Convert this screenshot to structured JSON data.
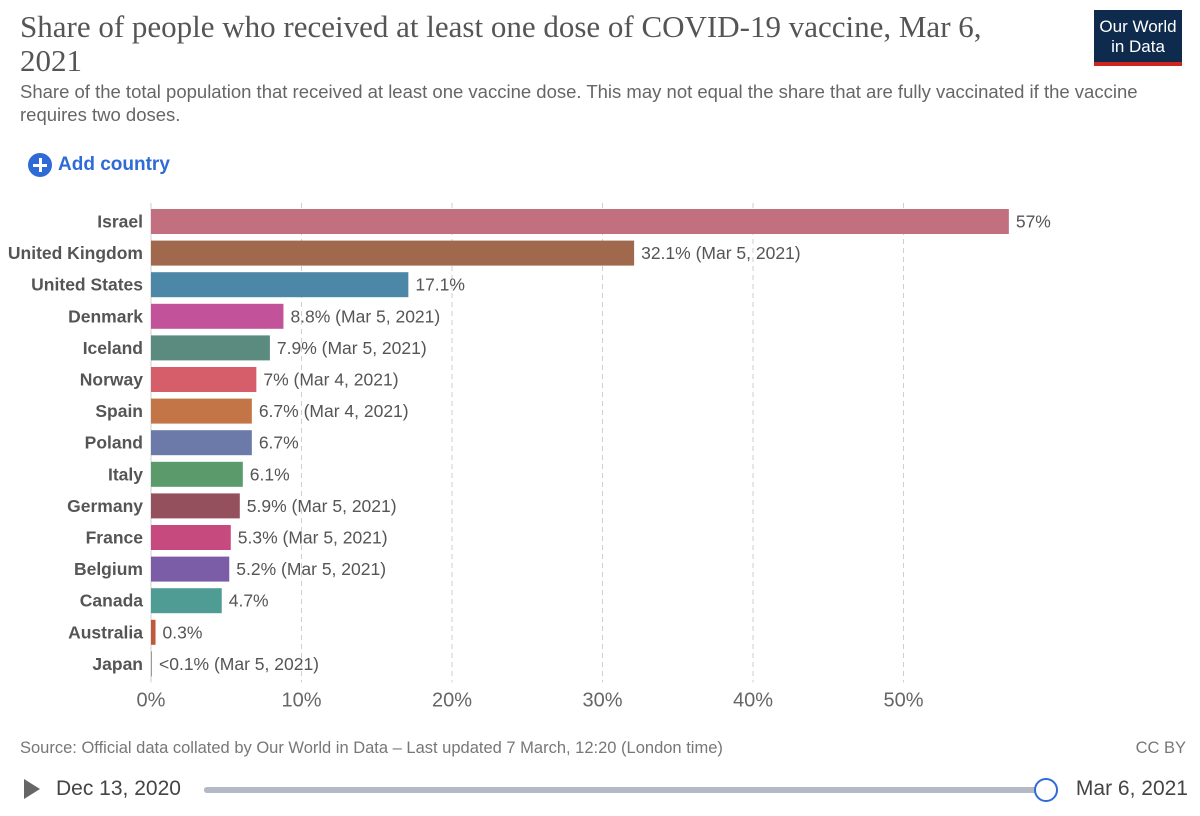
{
  "header": {
    "title": "Share of people who received at least one dose of COVID-19 vaccine, Mar 6, 2021",
    "subtitle": "Share of the total population that received at least one vaccine dose. This may not equal the share that are fully vaccinated if the vaccine requires two doses.",
    "logo_line1": "Our World",
    "logo_line2": "in Data"
  },
  "controls": {
    "add_country_label": "Add country"
  },
  "chart_data": {
    "type": "bar",
    "orientation": "horizontal",
    "title": "Share of people who received at least one dose of COVID-19 vaccine, Mar 6, 2021",
    "xlabel": "",
    "ylabel": "",
    "xlim": [
      0,
      57
    ],
    "x_ticks": [
      0,
      10,
      20,
      30,
      40,
      50
    ],
    "x_tick_labels": [
      "0%",
      "10%",
      "20%",
      "30%",
      "40%",
      "50%"
    ],
    "grid": true,
    "categories": [
      "Israel",
      "United Kingdom",
      "United States",
      "Denmark",
      "Iceland",
      "Norway",
      "Spain",
      "Poland",
      "Italy",
      "Germany",
      "France",
      "Belgium",
      "Canada",
      "Australia",
      "Japan"
    ],
    "values": [
      57,
      32.1,
      17.1,
      8.8,
      7.9,
      7,
      6.7,
      6.7,
      6.1,
      5.9,
      5.3,
      5.2,
      4.7,
      0.3,
      0.05
    ],
    "value_labels": [
      "57%",
      "32.1% (Mar 5, 2021)",
      "17.1%",
      "8.8% (Mar 5, 2021)",
      "7.9% (Mar 5, 2021)",
      "7% (Mar 4, 2021)",
      "6.7% (Mar 4, 2021)",
      "6.7%",
      "6.1%",
      "5.9% (Mar 5, 2021)",
      "5.3% (Mar 5, 2021)",
      "5.2% (Mar 5, 2021)",
      "4.7%",
      "0.3%",
      "<0.1% (Mar 5, 2021)"
    ],
    "colors": [
      "#c2707f",
      "#a0694d",
      "#4c87a8",
      "#c2539a",
      "#5b8a7e",
      "#d55e6a",
      "#c37547",
      "#6b7aa8",
      "#5a9a6b",
      "#95505d",
      "#c74a7e",
      "#7b5ca6",
      "#4f9c95",
      "#c0583b",
      "#9a9a9a"
    ]
  },
  "footer": {
    "source": "Source: Official data collated by Our World in Data – Last updated 7 March, 12:20 (London time)",
    "license": "CC BY"
  },
  "timeline": {
    "start_date": "Dec 13, 2020",
    "end_date": "Mar 6, 2021",
    "position": 1.0
  }
}
